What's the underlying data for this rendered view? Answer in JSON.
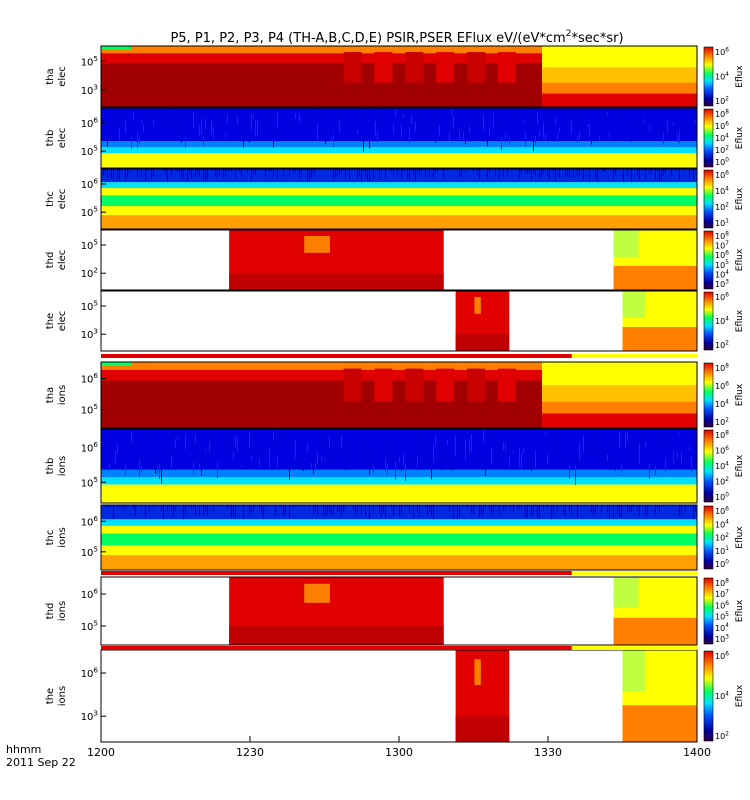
{
  "chart_data": {
    "type": "heatmap",
    "title": "P5, P1, P2, P3, P4 (TH-A,B,C,D,E) PSIR,PSER EFlux eV/(eV*cm",
    "title_sup": "2",
    "title_tail": "*sec*sr)",
    "x_axis": {
      "ticks": [
        "1200",
        "1230",
        "1300",
        "1330",
        "1400"
      ],
      "units_label": "hhmm",
      "date_label": "2011 Sep 22"
    },
    "colorbar_label": "Eflux",
    "panels": [
      {
        "name": "tha",
        "species": "elec",
        "yticks": [
          [
            "10",
            "5"
          ],
          [
            "10",
            "3"
          ]
        ],
        "cb_ticks": [
          [
            "10",
            "6"
          ],
          [
            "10",
            "4"
          ],
          [
            "10",
            "2"
          ]
        ],
        "pattern": "full",
        "transition": 0.74
      },
      {
        "name": "thb",
        "species": "elec",
        "yticks": [
          [
            "10",
            "6"
          ],
          [
            "10",
            "5"
          ]
        ],
        "cb_ticks": [
          [
            "10",
            "8"
          ],
          [
            "10",
            "6"
          ],
          [
            "10",
            "4"
          ],
          [
            "10",
            "2"
          ],
          [
            "10",
            "0"
          ]
        ],
        "pattern": "noisy-blue"
      },
      {
        "name": "thc",
        "species": "elec",
        "yticks": [
          [
            "10",
            "6"
          ],
          [
            "10",
            "5"
          ]
        ],
        "cb_ticks": [
          [
            "10",
            "6"
          ],
          [
            "10",
            "4"
          ],
          [
            "10",
            "2"
          ],
          [
            "10",
            "1"
          ]
        ],
        "pattern": "noisy-green"
      },
      {
        "name": "thd",
        "species": "elec",
        "yticks": [
          [
            "10",
            "5"
          ],
          [
            "10",
            "2"
          ]
        ],
        "cb_ticks": [
          [
            "10",
            "8"
          ],
          [
            "10",
            "7"
          ],
          [
            "10",
            "6"
          ],
          [
            "10",
            "5"
          ],
          [
            "10",
            "4"
          ],
          [
            "10",
            "3"
          ]
        ],
        "pattern": "blocks",
        "blocks": [
          [
            0.215,
            0.575
          ],
          [
            0.86,
            1.0
          ]
        ]
      },
      {
        "name": "the",
        "species": "elec",
        "yticks": [
          [
            "10",
            "5"
          ],
          [
            "10",
            "3"
          ]
        ],
        "cb_ticks": [
          [
            "10",
            "6"
          ],
          [
            "10",
            "4"
          ],
          [
            "10",
            "2"
          ]
        ],
        "pattern": "blocks",
        "blocks": [
          [
            0.595,
            0.685
          ],
          [
            0.875,
            1.0
          ]
        ]
      },
      {
        "name": "tha",
        "species": "ions",
        "yticks": [
          [
            "10",
            "6"
          ],
          [
            "10",
            "5"
          ]
        ],
        "cb_ticks": [
          [
            "10",
            "8"
          ],
          [
            "10",
            "6"
          ],
          [
            "10",
            "4"
          ],
          [
            "10",
            "2"
          ]
        ],
        "pattern": "full",
        "transition": 0.74
      },
      {
        "name": "thb",
        "species": "ions",
        "yticks": [
          [
            "10",
            "6"
          ],
          [
            "10",
            "5"
          ]
        ],
        "cb_ticks": [
          [
            "10",
            "8"
          ],
          [
            "10",
            "6"
          ],
          [
            "10",
            "4"
          ],
          [
            "10",
            "2"
          ],
          [
            "10",
            "0"
          ]
        ],
        "pattern": "noisy-blue2"
      },
      {
        "name": "thc",
        "species": "ions",
        "yticks": [
          [
            "10",
            "6"
          ],
          [
            "10",
            "5"
          ]
        ],
        "cb_ticks": [
          [
            "10",
            "6"
          ],
          [
            "10",
            "4"
          ],
          [
            "10",
            "2"
          ],
          [
            "10",
            "1"
          ],
          [
            "10",
            "0"
          ]
        ],
        "pattern": "noisy-green"
      },
      {
        "name": "thd",
        "species": "ions",
        "yticks": [
          [
            "10",
            "6"
          ],
          [
            "10",
            "5"
          ]
        ],
        "cb_ticks": [
          [
            "10",
            "8"
          ],
          [
            "10",
            "7"
          ],
          [
            "10",
            "6"
          ],
          [
            "10",
            "5"
          ],
          [
            "10",
            "4"
          ],
          [
            "10",
            "3"
          ]
        ],
        "pattern": "blocks",
        "blocks": [
          [
            0.215,
            0.575
          ],
          [
            0.86,
            1.0
          ]
        ]
      },
      {
        "name": "the",
        "species": "ions",
        "yticks": [
          [
            "10",
            "6"
          ],
          [
            "10",
            "3"
          ]
        ],
        "cb_ticks": [
          [
            "10",
            "6"
          ],
          [
            "10",
            "4"
          ],
          [
            "10",
            "2"
          ]
        ],
        "pattern": "blocks",
        "blocks": [
          [
            0.595,
            0.685
          ],
          [
            0.875,
            1.0
          ]
        ]
      }
    ],
    "colors": {
      "dark_red": "#a00000",
      "red": "#e00000",
      "orange": "#ff8000",
      "yellow": "#ffff00",
      "green": "#00ff60",
      "cyan": "#00e0ff",
      "blue": "#0000e0",
      "navy": "#000080"
    }
  }
}
